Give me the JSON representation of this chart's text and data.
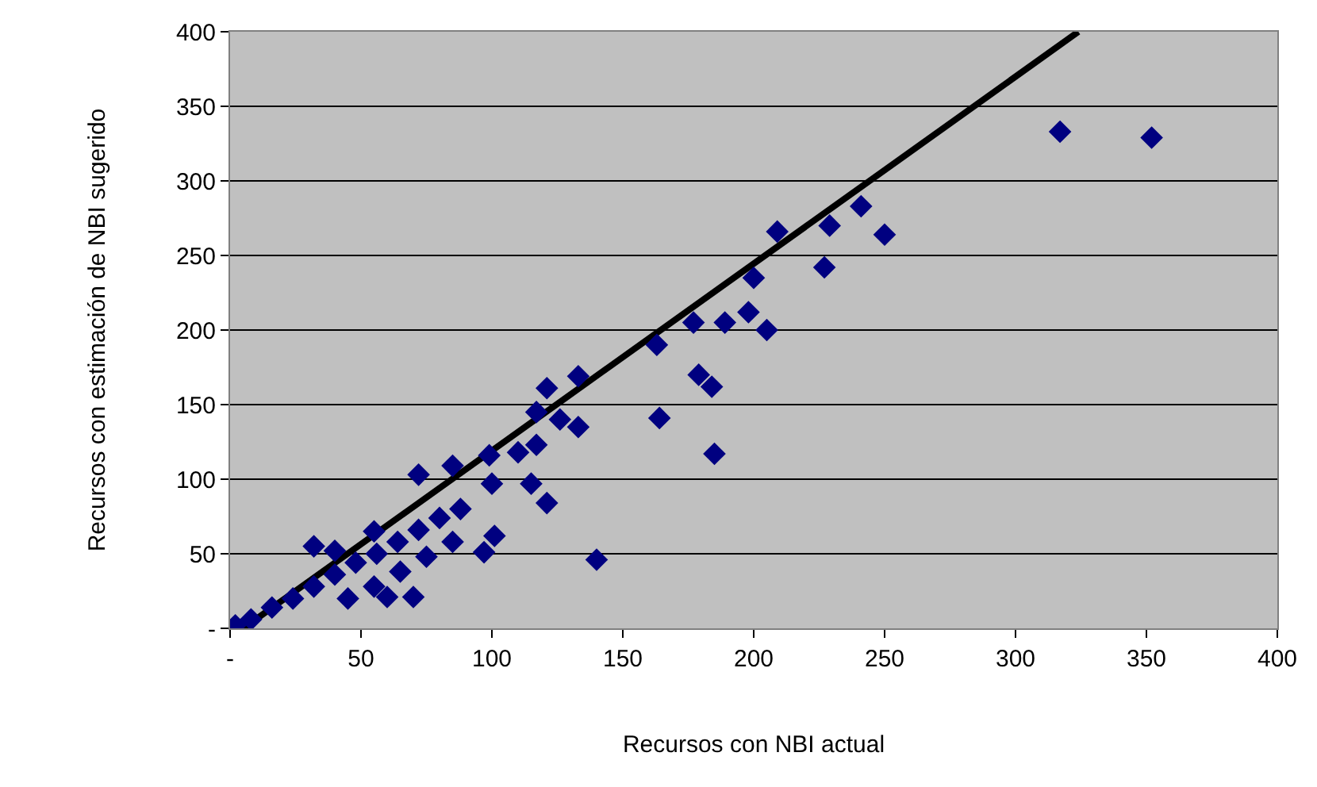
{
  "chart_data": {
    "type": "scatter",
    "xlabel": "Recursos con NBI actual",
    "ylabel": "Recursos con estimación de NBI sugerido",
    "xlim": [
      0,
      400
    ],
    "ylim": [
      0,
      400
    ],
    "xticks": [
      {
        "value": 0,
        "label": "-"
      },
      50,
      100,
      150,
      200,
      250,
      300,
      350,
      400
    ],
    "yticks": [
      {
        "value": 0,
        "label": "-"
      },
      50,
      100,
      150,
      200,
      250,
      300,
      350,
      400
    ],
    "grid": "y",
    "marker": "diamond",
    "series": [
      {
        "type": "line",
        "color": "#000000",
        "x": [
          5,
          324
        ],
        "values": [
          0,
          400
        ],
        "marker": "none",
        "line_style": "solid"
      },
      {
        "color": "#000080",
        "x": [
          317,
          352,
          209,
          229,
          241,
          250,
          227,
          200,
          198,
          205,
          189,
          177,
          179,
          184,
          185,
          164,
          163,
          133,
          121,
          117,
          117,
          126,
          133,
          121,
          140,
          110,
          115,
          99,
          100,
          101,
          97,
          72,
          85,
          70,
          60,
          32,
          2,
          8,
          16,
          24,
          32,
          40,
          48,
          56,
          64,
          72,
          80,
          88,
          45,
          55,
          65,
          75,
          85,
          40,
          55
        ],
        "values": [
          333,
          329,
          266,
          270,
          283,
          264,
          242,
          235,
          212,
          200,
          205,
          205,
          170,
          162,
          117,
          141,
          190,
          169,
          161,
          145,
          123,
          140,
          135,
          84,
          46,
          118,
          97,
          116,
          97,
          62,
          51,
          103,
          109,
          21,
          21,
          55,
          2,
          6,
          14,
          20,
          28,
          36,
          44,
          50,
          58,
          66,
          74,
          80,
          20,
          28,
          38,
          48,
          58,
          52,
          65
        ]
      }
    ]
  }
}
